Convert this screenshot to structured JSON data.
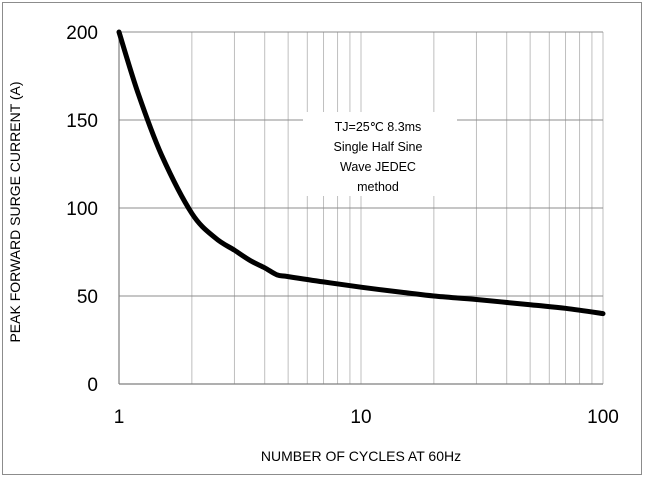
{
  "chart_data": {
    "type": "line",
    "title": "",
    "xlabel": "NUMBER OF CYCLES AT 60Hz",
    "ylabel": "PEAK FORWARD SURGE CURRENT (A)",
    "x_scale": "log",
    "xlim": [
      1,
      100
    ],
    "ylim": [
      0,
      200
    ],
    "x_ticks": [
      "1",
      "10",
      "100"
    ],
    "y_ticks": [
      "0",
      "50",
      "100",
      "150",
      "200"
    ],
    "grid": true,
    "annotation": [
      "TJ=25℃ 8.3ms",
      "Single Half  Sine",
      "Wave JEDEC",
      "method"
    ],
    "series": [
      {
        "x": [
          1,
          1.2,
          1.5,
          2,
          2.5,
          3,
          3.5,
          4,
          4.5,
          5,
          7,
          10,
          15,
          20,
          30,
          50,
          70,
          100
        ],
        "y": [
          200,
          165,
          130,
          97,
          83,
          76,
          70,
          66,
          62,
          61,
          58,
          55,
          52,
          50,
          48,
          45,
          43,
          40
        ]
      }
    ],
    "line_color": "#000000",
    "grid_color": "#bfbfbf"
  }
}
